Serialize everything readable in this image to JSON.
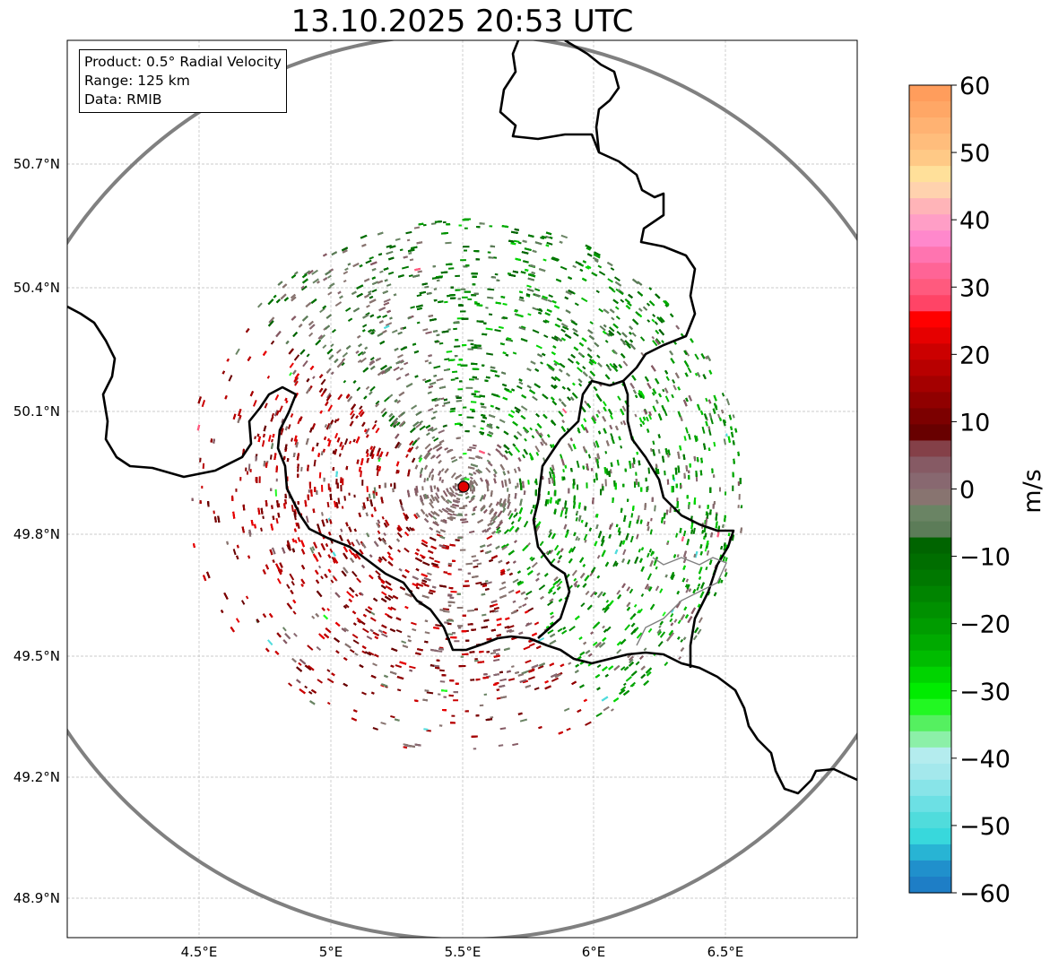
{
  "title": "13.10.2025 20:53 UTC",
  "info_box": {
    "product": "Product: 0.5° Radial Velocity",
    "range": "Range: 125 km",
    "data": "Data: RMIB"
  },
  "axes": {
    "lat_ticks": [
      "50.7°N",
      "50.4°N",
      "50.1°N",
      "49.8°N",
      "49.5°N",
      "49.2°N",
      "48.9°N"
    ],
    "lon_ticks": [
      "4.5°E",
      "5°E",
      "5.5°E",
      "6°E",
      "6.5°E"
    ]
  },
  "colorbar": {
    "label": "m/s",
    "ticks": [
      "60",
      "50",
      "40",
      "30",
      "20",
      "10",
      "0",
      "−10",
      "−20",
      "−30",
      "−40",
      "−50",
      "−60"
    ],
    "range": [
      -60,
      60
    ],
    "colors_top_to_bottom": [
      "#ff9d5c",
      "#ffa766",
      "#ffb272",
      "#ffbd7c",
      "#ffc986",
      "#ffe09a",
      "#ffd2ae",
      "#ffb4b8",
      "#ff9ec6",
      "#ff88cc",
      "#ff74b0",
      "#ff6496",
      "#ff5a7e",
      "#ff4466",
      "#ff0000",
      "#e60000",
      "#cc0000",
      "#b80000",
      "#a40000",
      "#900000",
      "#7c0000",
      "#680000",
      "#844048",
      "#865a64",
      "#886870",
      "#887470",
      "#6a8464",
      "#5c7c58",
      "#006400",
      "#006e00",
      "#007800",
      "#008400",
      "#009000",
      "#009c00",
      "#00aa00",
      "#00bc00",
      "#00d400",
      "#00ec00",
      "#22f822",
      "#55f060",
      "#8cf0a8",
      "#b4ecee",
      "#a4e8ec",
      "#88e4e8",
      "#6ce0e4",
      "#50dcdc",
      "#38d8dc",
      "#28b4d4",
      "#2090cc",
      "#1e7ec6"
    ]
  },
  "radar_site": {
    "color": "#e00000"
  }
}
